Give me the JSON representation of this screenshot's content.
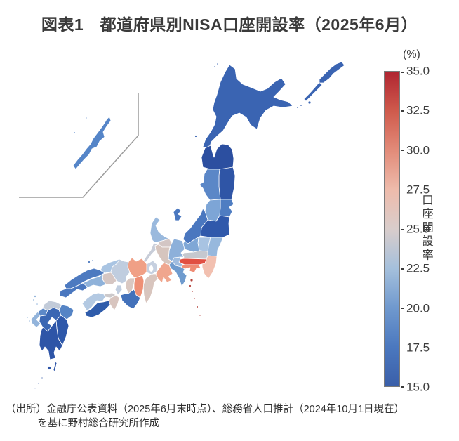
{
  "title": "図表1　都道府県別NISA口座開設率（2025年6月）",
  "source_note": {
    "line1": "（出所）金融庁公表資料（2025年6月末時点）、総務省人口推計（2024年10月1日現在）",
    "line2": "を基に野村総合研究所作成"
  },
  "colorbar": {
    "unit_label": "(%)",
    "axis_label": "口座開設率",
    "min": 15.0,
    "max": 35.0,
    "tick_step": 2.5,
    "ticks": [
      "35.0",
      "32.5",
      "30.0",
      "27.5",
      "25.0",
      "22.5",
      "20.0",
      "17.5",
      "15.0"
    ],
    "gradient_stops": [
      "#b02531",
      "#cf5a4c",
      "#e28b79",
      "#eebbab",
      "#d9cdcb",
      "#a5c0dc",
      "#7099ce",
      "#4b78bf",
      "#3a5fa9"
    ]
  },
  "map": {
    "inset_border_color": "#9b9b9b",
    "izu_islands_color": "#b5443c",
    "lake_color": "#ffffff"
  },
  "chart_data": {
    "type": "heatmap",
    "subtype": "choropleth-map-japan-prefectures",
    "title": "図表1　都道府県別NISA口座開設率（2025年6月）",
    "unit": "%",
    "legend_position": "right",
    "colorbar": {
      "label": "口座開設率",
      "unit_label": "(%)",
      "min": 15.0,
      "max": 35.0,
      "ticks": [
        35.0,
        32.5,
        30.0,
        27.5,
        25.0,
        22.5,
        20.0,
        17.5,
        15.0
      ],
      "orientation": "vertical",
      "colormap": "diverging red(high)-gray-blue(low)"
    },
    "regions": [
      {
        "name": "Hokkaido",
        "name_ja": "北海道",
        "color": "#3a64b2",
        "value_est_pct": 18.0
      },
      {
        "name": "Aomori",
        "name_ja": "青森県",
        "color": "#2c4fa0",
        "value_est_pct": 16.0
      },
      {
        "name": "Iwate",
        "name_ja": "岩手県",
        "color": "#2f55a6",
        "value_est_pct": 16.5
      },
      {
        "name": "Miyagi",
        "name_ja": "宮城県",
        "color": "#4f7dc2",
        "value_est_pct": 20.0
      },
      {
        "name": "Akita",
        "name_ja": "秋田県",
        "color": "#5b87c7",
        "value_est_pct": 20.5
      },
      {
        "name": "Yamagata",
        "name_ja": "山形県",
        "color": "#7da5d6",
        "value_est_pct": 22.0
      },
      {
        "name": "Fukushima",
        "name_ja": "福島県",
        "color": "#3059ab",
        "value_est_pct": 17.0
      },
      {
        "name": "Ibaraki",
        "name_ja": "茨城県",
        "color": "#97b8dd",
        "value_est_pct": 23.0
      },
      {
        "name": "Tochigi",
        "name_ja": "栃木県",
        "color": "#a8c3e2",
        "value_est_pct": 23.5
      },
      {
        "name": "Gunma",
        "name_ja": "群馬県",
        "color": "#7fa7d6",
        "value_est_pct": 22.0
      },
      {
        "name": "Saitama",
        "name_ja": "埼玉県",
        "color": "#c5c8cf",
        "value_est_pct": 25.0
      },
      {
        "name": "Chiba",
        "name_ja": "千葉県",
        "color": "#f2c0b0",
        "value_est_pct": 27.5
      },
      {
        "name": "Tokyo",
        "name_ja": "東京都",
        "color": "#e14f42",
        "value_est_pct": 32.5
      },
      {
        "name": "Kanagawa",
        "name_ja": "神奈川県",
        "color": "#ef8b74",
        "value_est_pct": 29.5
      },
      {
        "name": "Niigata",
        "name_ja": "新潟県",
        "color": "#4a77bf",
        "value_est_pct": 19.5
      },
      {
        "name": "Toyama",
        "name_ja": "富山県",
        "color": "#d3c6c4",
        "value_est_pct": 25.5
      },
      {
        "name": "Ishikawa",
        "name_ja": "石川県",
        "color": "#9ab9dd",
        "value_est_pct": 23.0
      },
      {
        "name": "Fukui",
        "name_ja": "福井県",
        "color": "#c8cdd8",
        "value_est_pct": 24.5
      },
      {
        "name": "Yamanashi",
        "name_ja": "山梨県",
        "color": "#9fbcdf",
        "value_est_pct": 23.0
      },
      {
        "name": "Nagano",
        "name_ja": "長野県",
        "color": "#8db0da",
        "value_est_pct": 22.5
      },
      {
        "name": "Gifu",
        "name_ja": "岐阜県",
        "color": "#d6c5be",
        "value_est_pct": 25.5
      },
      {
        "name": "Shizuoka",
        "name_ja": "静岡県",
        "color": "#6f9bce",
        "value_est_pct": 21.5
      },
      {
        "name": "Aichi",
        "name_ja": "愛知県",
        "color": "#f0a68e",
        "value_est_pct": 28.5
      },
      {
        "name": "Mie",
        "name_ja": "三重県",
        "color": "#d8c5be",
        "value_est_pct": 26.0
      },
      {
        "name": "Shiga",
        "name_ja": "滋賀県",
        "color": "#c6d0e0",
        "value_est_pct": 24.5
      },
      {
        "name": "Kyoto",
        "name_ja": "京都府",
        "color": "#f0a086",
        "value_est_pct": 28.5
      },
      {
        "name": "Osaka",
        "name_ja": "大阪府",
        "color": "#d9c8c2",
        "value_est_pct": 26.0
      },
      {
        "name": "Hyogo",
        "name_ja": "兵庫県",
        "color": "#c0cddf",
        "value_est_pct": 24.0
      },
      {
        "name": "Nara",
        "name_ja": "奈良県",
        "color": "#ee8f75",
        "value_est_pct": 29.5
      },
      {
        "name": "Wakayama",
        "name_ja": "和歌山県",
        "color": "#4371ba",
        "value_est_pct": 19.0
      },
      {
        "name": "Tottori",
        "name_ja": "鳥取県",
        "color": "#a9c4e2",
        "value_est_pct": 23.5
      },
      {
        "name": "Shimane",
        "name_ja": "島根県",
        "color": "#4d7ac0",
        "value_est_pct": 19.5
      },
      {
        "name": "Okayama",
        "name_ja": "岡山県",
        "color": "#d5c6c3",
        "value_est_pct": 25.5
      },
      {
        "name": "Hiroshima",
        "name_ja": "広島県",
        "color": "#8fb2da",
        "value_est_pct": 22.5
      },
      {
        "name": "Yamaguchi",
        "name_ja": "山口県",
        "color": "#4a77bf",
        "value_est_pct": 19.5
      },
      {
        "name": "Tokushima",
        "name_ja": "徳島県",
        "color": "#d8c5bf",
        "value_est_pct": 26.0
      },
      {
        "name": "Kagawa",
        "name_ja": "香川県",
        "color": "#ccc9cb",
        "value_est_pct": 25.0
      },
      {
        "name": "Ehime",
        "name_ja": "愛媛県",
        "color": "#b3c9e2",
        "value_est_pct": 24.0
      },
      {
        "name": "Kochi",
        "name_ja": "高知県",
        "color": "#2f5cab",
        "value_est_pct": 17.0
      },
      {
        "name": "Fukuoka",
        "name_ja": "福岡県",
        "color": "#c2cbd9",
        "value_est_pct": 24.5
      },
      {
        "name": "Saga",
        "name_ja": "佐賀県",
        "color": "#5d89c8",
        "value_est_pct": 20.5
      },
      {
        "name": "Nagasaki",
        "name_ja": "長崎県",
        "color": "#93b4db",
        "value_est_pct": 22.5
      },
      {
        "name": "Kumamoto",
        "name_ja": "熊本県",
        "color": "#3a66b3",
        "value_est_pct": 18.0
      },
      {
        "name": "Oita",
        "name_ja": "大分県",
        "color": "#5584c5",
        "value_est_pct": 20.0
      },
      {
        "name": "Miyazaki",
        "name_ja": "宮崎県",
        "color": "#2e58aa",
        "value_est_pct": 17.0
      },
      {
        "name": "Kagoshima",
        "name_ja": "鹿児島県",
        "color": "#2e55a7",
        "value_est_pct": 16.5
      },
      {
        "name": "Okinawa",
        "name_ja": "沖縄県",
        "color": "#5585c8",
        "value_est_pct": 20.5
      }
    ]
  }
}
